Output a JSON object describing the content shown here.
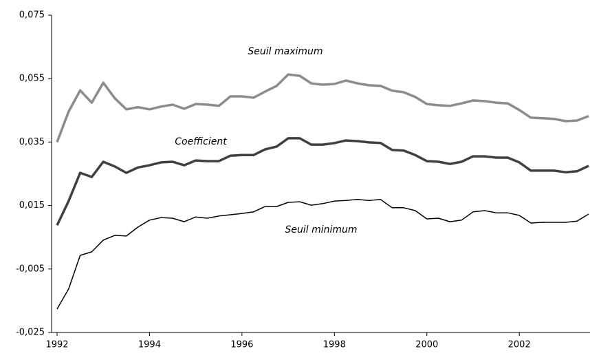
{
  "chart_data": {
    "type": "line",
    "annotations": [
      "Seuil maximum",
      "Coefficient",
      "Seuil minimum"
    ],
    "x": [
      1992,
      1992.25,
      1992.5,
      1992.75,
      1993,
      1993.25,
      1993.5,
      1993.75,
      1994,
      1994.25,
      1994.5,
      1994.75,
      1995,
      1995.25,
      1995.5,
      1995.75,
      1996,
      1996.25,
      1996.5,
      1996.75,
      1997,
      1997.25,
      1997.5,
      1997.75,
      1998,
      1998.25,
      1998.5,
      1998.75,
      1999,
      1999.25,
      1999.5,
      1999.75,
      2000,
      2000.25,
      2000.5,
      2000.75,
      2001,
      2001.25,
      2001.5,
      2001.75,
      2002,
      2002.25,
      2002.5,
      2002.75,
      2003,
      2003.25,
      2003.5
    ],
    "series": [
      {
        "name": "Seuil maximum",
        "color": "#8c8c8c",
        "values": [
          0.035,
          0.0446,
          0.0513,
          0.0474,
          0.0537,
          0.0488,
          0.0453,
          0.046,
          0.0453,
          0.0462,
          0.0468,
          0.0455,
          0.047,
          0.0468,
          0.0464,
          0.0494,
          0.0494,
          0.049,
          0.0509,
          0.0527,
          0.0563,
          0.0559,
          0.0535,
          0.0531,
          0.0533,
          0.0544,
          0.0535,
          0.0529,
          0.0527,
          0.0512,
          0.0507,
          0.0492,
          0.047,
          0.0466,
          0.0464,
          0.0472,
          0.0481,
          0.0479,
          0.0474,
          0.0472,
          0.0451,
          0.0427,
          0.0425,
          0.0423,
          0.0416,
          0.0418,
          0.0432
        ]
      },
      {
        "name": "Coefficient",
        "color": "#404040",
        "values": [
          0.0088,
          0.0164,
          0.0253,
          0.024,
          0.0288,
          0.0273,
          0.0253,
          0.027,
          0.0277,
          0.0286,
          0.0288,
          0.0277,
          0.0292,
          0.029,
          0.029,
          0.0307,
          0.0309,
          0.0309,
          0.0327,
          0.0336,
          0.0362,
          0.0362,
          0.0342,
          0.0342,
          0.0347,
          0.0355,
          0.0353,
          0.0349,
          0.0347,
          0.0325,
          0.0323,
          0.0309,
          0.029,
          0.0288,
          0.0281,
          0.0288,
          0.0305,
          0.0305,
          0.0301,
          0.0301,
          0.0286,
          0.026,
          0.026,
          0.026,
          0.0255,
          0.0258,
          0.0275
        ]
      },
      {
        "name": "Seuil minimum",
        "color": "#000000",
        "values": [
          -0.0176,
          -0.0113,
          -0.0007,
          0.0004,
          0.0041,
          0.0056,
          0.0054,
          0.0082,
          0.0104,
          0.0112,
          0.011,
          0.0099,
          0.0114,
          0.011,
          0.0117,
          0.0121,
          0.0125,
          0.013,
          0.0147,
          0.0147,
          0.016,
          0.0162,
          0.0151,
          0.0156,
          0.0164,
          0.0166,
          0.0169,
          0.0166,
          0.0169,
          0.0143,
          0.0143,
          0.0134,
          0.0108,
          0.011,
          0.0099,
          0.0104,
          0.013,
          0.0134,
          0.0127,
          0.0127,
          0.0119,
          0.0095,
          0.0097,
          0.0097,
          0.0097,
          0.0101,
          0.0123
        ]
      }
    ],
    "xlim": [
      1992,
      2003.5
    ],
    "xticks": [
      1992,
      1994,
      1996,
      1998,
      2000,
      2002
    ],
    "ylim": [
      -0.025,
      0.075
    ],
    "yticks": [
      {
        "value": -0.025,
        "label": "-0,025"
      },
      {
        "value": -0.005,
        "label": "-0,005"
      },
      {
        "value": 0.015,
        "label": "0,015"
      },
      {
        "value": 0.035,
        "label": "0,035"
      },
      {
        "value": 0.055,
        "label": "0,055"
      },
      {
        "value": 0.075,
        "label": "0,075"
      }
    ]
  }
}
